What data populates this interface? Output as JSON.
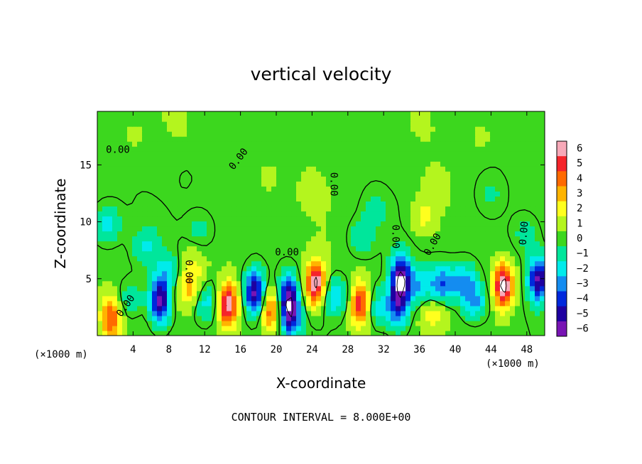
{
  "chart_data": {
    "type": "heatmap",
    "title": "vertical velocity",
    "xlabel": "X-coordinate",
    "ylabel": "Z-coordinate",
    "x_unit_label": "(×1000 m)",
    "y_unit_label": "(×1000 m)",
    "xlim": [
      0,
      50
    ],
    "ylim": [
      0,
      19.7
    ],
    "x_ticks": [
      4,
      8,
      12,
      16,
      20,
      24,
      28,
      32,
      36,
      40,
      44,
      48
    ],
    "y_ticks": [
      5,
      10,
      15
    ],
    "colorbar": {
      "labels": [
        "6",
        "5",
        "4",
        "3",
        "2",
        "1",
        "0",
        "−1",
        "−2",
        "−3",
        "−4",
        "−5",
        "−6"
      ],
      "colors": [
        "#f7a9b8",
        "#f5242a",
        "#ff6a00",
        "#ffb400",
        "#ffff1e",
        "#b4f51e",
        "#3cd71e",
        "#00e69b",
        "#00ebeb",
        "#148cf0",
        "#0028dc",
        "#1e00a0",
        "#7814b4"
      ]
    },
    "contour_label": "0.00",
    "contour_note": "CONTOUR INTERVAL = 8.000E+00",
    "features": [
      {
        "x": 1.5,
        "z": 1.6,
        "w": 4.5
      },
      {
        "x": 3.6,
        "z": 3.2,
        "w": -1.6
      },
      {
        "x": 7.0,
        "z": 3.0,
        "w": -6.5
      },
      {
        "x": 7.8,
        "z": 5.6,
        "w": -2.0
      },
      {
        "x": 10.3,
        "z": 4.0,
        "w": 3.0
      },
      {
        "x": 10.6,
        "z": 6.3,
        "w": 1.5
      },
      {
        "x": 12.2,
        "z": 3.0,
        "w": -2.6
      },
      {
        "x": 14.6,
        "z": 2.7,
        "w": 6.5
      },
      {
        "x": 17.6,
        "z": 3.8,
        "w": -6.5
      },
      {
        "x": 19.4,
        "z": 2.2,
        "w": 4.5
      },
      {
        "x": 21.3,
        "z": 3.6,
        "w": -4.5
      },
      {
        "x": 21.6,
        "z": 1.8,
        "w": -5.2
      },
      {
        "x": 24.4,
        "z": 4.6,
        "w": 7.0
      },
      {
        "x": 26.6,
        "z": 3.5,
        "w": -3.0
      },
      {
        "x": 29.4,
        "z": 2.8,
        "w": 5.5
      },
      {
        "x": 31.3,
        "z": 2.5,
        "w": -2.5
      },
      {
        "x": 33.6,
        "z": 2.6,
        "w": -4.5
      },
      {
        "x": 33.9,
        "z": 5.1,
        "w": -6.5
      },
      {
        "x": 35.8,
        "z": 4.3,
        "w": -2.6
      },
      {
        "x": 38.5,
        "z": 4.5,
        "w": -4.0
      },
      {
        "x": 41.0,
        "z": 4.8,
        "w": -3.0
      },
      {
        "x": 45.4,
        "z": 4.4,
        "w": 7.2
      },
      {
        "x": 42.2,
        "z": 3.0,
        "w": -3.0
      },
      {
        "x": 49.3,
        "z": 5.0,
        "w": -6.2
      },
      {
        "x": 37.5,
        "z": 2.0,
        "w": 2.0
      },
      {
        "x": 36.5,
        "z": 10.5,
        "w": 1.8
      },
      {
        "x": 38.0,
        "z": 12.8,
        "w": 1.0
      },
      {
        "x": 1.0,
        "z": 9.8,
        "w": -2.2
      },
      {
        "x": 5.5,
        "z": 7.8,
        "w": -1.7
      },
      {
        "x": 11.5,
        "z": 9.3,
        "w": -1.1
      },
      {
        "x": 29.5,
        "z": 8.6,
        "w": -1.6
      },
      {
        "x": 31.0,
        "z": 11.0,
        "w": -1.0
      },
      {
        "x": 24.0,
        "z": 13.0,
        "w": 0.6
      },
      {
        "x": 19.0,
        "z": 14.0,
        "w": 0.6
      },
      {
        "x": 10.0,
        "z": 14.0,
        "w": -0.4
      },
      {
        "x": 44.0,
        "z": 12.5,
        "w": -0.8
      },
      {
        "x": 48.0,
        "z": 9.0,
        "w": -1.2
      },
      {
        "x": 43.0,
        "z": 17.5,
        "w": 0.5
      },
      {
        "x": 4.0,
        "z": 17.5,
        "w": 0.4
      }
    ]
  }
}
